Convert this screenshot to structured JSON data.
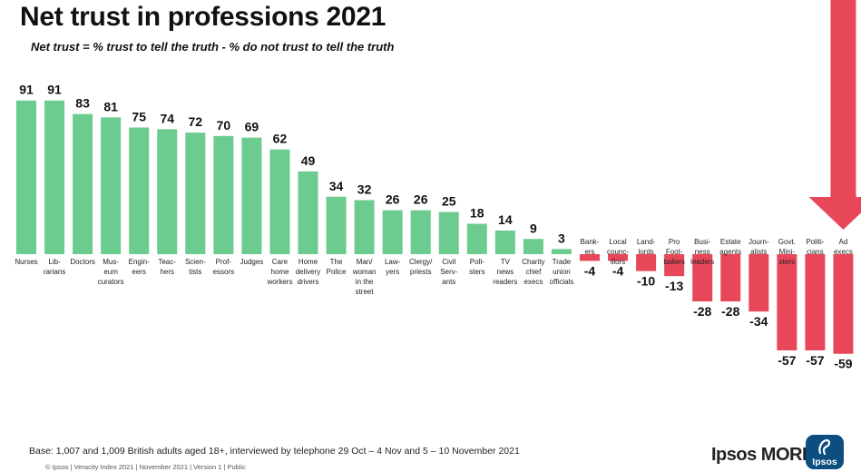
{
  "header": {
    "title": "Net trust in professions 2021",
    "subtitle": "Net trust = % trust to tell the truth - % do not trust to tell the truth"
  },
  "footer": {
    "base_note": "Base: 1,007 and 1,009 British adults aged 18+, interviewed by telephone 29 Oct – 4 Nov and 5 – 10 November 2021",
    "copyright": "© Ipsos | Veracity Index 2021 | November 2021 | Version 1 | Public",
    "brand": "Ipsos MORI",
    "logo_text": "Ipsos"
  },
  "colors": {
    "positive_bar": "#6ccb8f",
    "negative_bar": "#e8475a",
    "arrow": "#e8475a",
    "logo": "#0b4e7f"
  },
  "chart_data": {
    "type": "bar",
    "title": "Net trust in professions 2021",
    "subtitle": "Net trust = % trust to tell the truth - % do not trust to tell the truth",
    "categories": [
      [
        "Nurses"
      ],
      [
        "Lib-",
        "rarians"
      ],
      [
        "Doctors"
      ],
      [
        "Mus-",
        "eum",
        "curators"
      ],
      [
        "Engin-",
        "eers"
      ],
      [
        "Teac-",
        "hers"
      ],
      [
        "Scien-",
        "tists"
      ],
      [
        "Prof-",
        "essors"
      ],
      [
        "Judges"
      ],
      [
        "Care",
        "home",
        "workers"
      ],
      [
        "Home",
        "delivery",
        "drivers"
      ],
      [
        "The",
        "Police"
      ],
      [
        "Man/",
        "woman",
        "in the",
        "street"
      ],
      [
        "Law-",
        "yers"
      ],
      [
        "Clergy/",
        "priests"
      ],
      [
        "Civil",
        "Serv-",
        "ants"
      ],
      [
        "Poll-",
        "sters"
      ],
      [
        "TV",
        "news",
        "readers"
      ],
      [
        "Charity",
        "chief",
        "execs"
      ],
      [
        "Trade",
        "union",
        "officials"
      ],
      [
        "Bank-",
        "ers"
      ],
      [
        "Local",
        "counc-",
        "illors"
      ],
      [
        "Land-",
        "lords"
      ],
      [
        "Pro",
        "Foot-",
        "ballers"
      ],
      [
        "Busi-",
        "ness",
        "leaders"
      ],
      [
        "Estate",
        "agents"
      ],
      [
        "Journ-",
        "alists"
      ],
      [
        "Govt.",
        "Mini-",
        "sters"
      ],
      [
        "Politi-",
        "cians"
      ],
      [
        "Ad",
        "execs"
      ]
    ],
    "values": [
      91,
      91,
      83,
      81,
      75,
      74,
      72,
      70,
      69,
      62,
      49,
      34,
      32,
      26,
      26,
      25,
      18,
      14,
      9,
      3,
      -4,
      -4,
      -10,
      -13,
      -28,
      -28,
      -34,
      -57,
      -57,
      -59
    ],
    "value_labels": [
      "91",
      "91",
      "83",
      "81",
      "75",
      "74",
      "72",
      "70",
      "69",
      "62",
      "49",
      "34",
      "32",
      "26",
      "26",
      "25",
      "18",
      "14",
      "9",
      "3",
      "-4",
      "-4",
      "-10",
      "-13",
      "-28",
      "-28",
      "-34",
      "-57",
      "-57",
      "-59"
    ],
    "highlight_index": 29,
    "grid": false,
    "legend": "none"
  }
}
